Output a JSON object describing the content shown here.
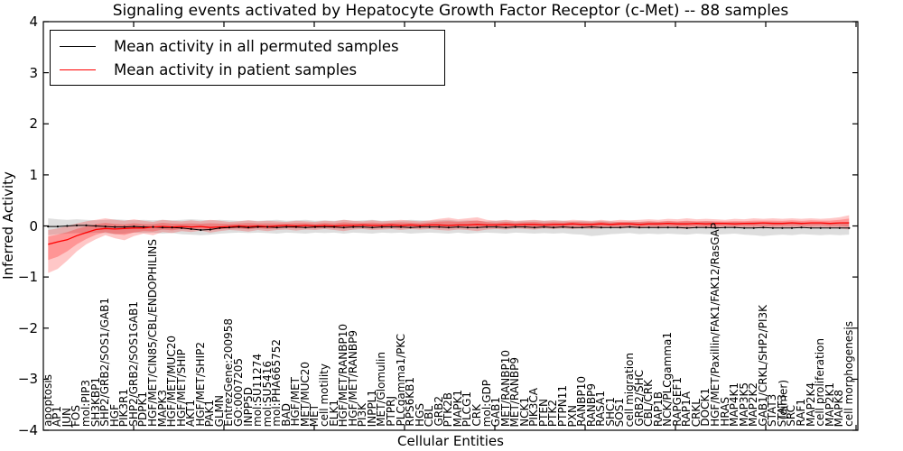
{
  "title": "Signaling events activated by Hepatocyte Growth Factor Receptor (c-Met) -- 88 samples",
  "axes": {
    "xlabel": "Cellular Entities",
    "ylabel": "Inferred Activity"
  },
  "chart_data": {
    "type": "line",
    "title": "Signaling events activated by Hepatocyte Growth Factor Receptor (c-Met) -- 88 samples",
    "xlabel": "Cellular Entities",
    "ylabel": "Inferred Activity",
    "ylim": [
      -4,
      4
    ],
    "yticks": [
      {
        "v": -4,
        "label": "−4"
      },
      {
        "v": -3,
        "label": "−3"
      },
      {
        "v": -2,
        "label": "−2"
      },
      {
        "v": -1,
        "label": "−1"
      },
      {
        "v": 0,
        "label": "0"
      },
      {
        "v": 1,
        "label": "1"
      },
      {
        "v": 2,
        "label": "2"
      },
      {
        "v": 3,
        "label": "3"
      },
      {
        "v": 4,
        "label": "4"
      }
    ],
    "grid": false,
    "legend_position": "upper left",
    "categories": [
      "apoptosis",
      "AP1",
      "JUN",
      "FOS",
      "mol:PIP3",
      "SH3KBP1",
      "SHP2/GRB2/SOS1/GAB1",
      "HGF",
      "PIK3R1",
      "SHP2/GRB2/SOS1GAB1",
      "PDPK1",
      "HGF/MET/CIN85/CBL/ENDOPHILINS",
      "MAPK3",
      "HGF/MET/MUC20",
      "HGF/MET/SHIP",
      "AKT1",
      "HGF/MET/SHIP2",
      "PAK1",
      "GLMN",
      "EntrezGene:200958",
      "GO:0007205",
      "INPP5D",
      "mol:SU11274",
      "mol:SU5416",
      "mol:PHA665752",
      "BAD",
      "HGF/MET",
      "MET/MUC20",
      "MET",
      "cell motility",
      "ELK1",
      "HGF/MET/RANBP10",
      "HGF/MET/RANBP9",
      "PI3K",
      "INPPL1",
      "MET/Glomulin",
      "PTPRJ",
      "PLCgamma1/PKC",
      "RPS6KB1",
      "HGS",
      "CBL",
      "GRB2",
      "PTK2B",
      "MAPK1",
      "PLCG1",
      "CRK",
      "mol:GDP",
      "GAB1",
      "MET/RANBP10",
      "MET/RANBP9",
      "NCK1",
      "PIK3CA",
      "PTEN",
      "PTK2",
      "PTPN11",
      "PXN",
      "RANBP10",
      "RANBP9",
      "RASA1",
      "SHC1",
      "SOS1",
      "cell migration",
      "GRB2/SHC",
      "CBL/CRK",
      "RAP1B",
      "NCK/PLCgamma1",
      "RAPGEF1",
      "RAP1A",
      "CRKL",
      "DOCK1",
      "HGF/MET/Paxillin/FAK1/FAK12/RasGAP",
      "HRAS",
      "MAP4K1",
      "MAP3K5",
      "MAP2K2",
      "GAB1/CRKL/SHP2/PI3K",
      "STAT3\n  (dimer)",
      "STAT3",
      "SRC",
      "RAF1",
      "MAP2K4",
      "cell proliferation",
      "MAP2K1",
      "MAPK8",
      "cell morphogenesis"
    ],
    "series": [
      {
        "name": "Mean activity in all permuted samples",
        "color": "#000000",
        "band_color": "rgba(0,0,0,0.13)",
        "values": [
          -0.01,
          -0.01,
          0.0,
          0.01,
          0.01,
          0.0,
          -0.01,
          -0.02,
          -0.02,
          -0.01,
          -0.02,
          -0.02,
          -0.03,
          -0.03,
          -0.04,
          -0.06,
          -0.08,
          -0.07,
          -0.04,
          -0.03,
          -0.02,
          -0.03,
          -0.02,
          -0.02,
          -0.03,
          -0.02,
          -0.02,
          -0.03,
          -0.02,
          -0.02,
          -0.02,
          -0.03,
          -0.02,
          -0.02,
          -0.03,
          -0.02,
          -0.02,
          -0.02,
          -0.03,
          -0.02,
          -0.02,
          -0.02,
          -0.03,
          -0.02,
          -0.03,
          -0.03,
          -0.02,
          -0.02,
          -0.03,
          -0.02,
          -0.02,
          -0.03,
          -0.02,
          -0.03,
          -0.02,
          -0.03,
          -0.03,
          -0.02,
          -0.03,
          -0.03,
          -0.03,
          -0.02,
          -0.03,
          -0.03,
          -0.03,
          -0.03,
          -0.03,
          -0.04,
          -0.03,
          -0.03,
          -0.04,
          -0.03,
          -0.03,
          -0.04,
          -0.04,
          -0.03,
          -0.04,
          -0.04,
          -0.04,
          -0.03,
          -0.04,
          -0.04,
          -0.04,
          -0.04,
          -0.04
        ],
        "band_lo": [
          -0.18,
          -0.16,
          -0.15,
          -0.14,
          -0.15,
          -0.13,
          -0.14,
          -0.16,
          -0.15,
          -0.13,
          -0.14,
          -0.13,
          -0.15,
          -0.14,
          -0.16,
          -0.17,
          -0.18,
          -0.17,
          -0.15,
          -0.14,
          -0.13,
          -0.14,
          -0.13,
          -0.14,
          -0.15,
          -0.13,
          -0.14,
          -0.15,
          -0.13,
          -0.14,
          -0.13,
          -0.15,
          -0.13,
          -0.14,
          -0.15,
          -0.13,
          -0.14,
          -0.13,
          -0.15,
          -0.14,
          -0.13,
          -0.14,
          -0.15,
          -0.13,
          -0.15,
          -0.14,
          -0.13,
          -0.14,
          -0.15,
          -0.13,
          -0.14,
          -0.15,
          -0.14,
          -0.15,
          -0.14,
          -0.16,
          -0.17,
          -0.2,
          -0.18,
          -0.16,
          -0.15,
          -0.14,
          -0.16,
          -0.15,
          -0.16,
          -0.15,
          -0.16,
          -0.17,
          -0.15,
          -0.16,
          -0.17,
          -0.16,
          -0.15,
          -0.17,
          -0.18,
          -0.2,
          -0.18,
          -0.17,
          -0.18,
          -0.16,
          -0.17,
          -0.18,
          -0.17,
          -0.18,
          -0.17
        ],
        "band_hi": [
          0.15,
          0.13,
          0.12,
          0.13,
          0.12,
          0.11,
          0.12,
          0.13,
          0.12,
          0.11,
          0.12,
          0.11,
          0.12,
          0.11,
          0.12,
          0.13,
          0.12,
          0.11,
          0.12,
          0.11,
          0.1,
          0.11,
          0.1,
          0.11,
          0.12,
          0.1,
          0.11,
          0.12,
          0.1,
          0.11,
          0.1,
          0.12,
          0.1,
          0.11,
          0.12,
          0.1,
          0.11,
          0.1,
          0.12,
          0.11,
          0.1,
          0.11,
          0.12,
          0.1,
          0.11,
          0.1,
          0.09,
          0.1,
          0.11,
          0.09,
          0.1,
          0.11,
          0.1,
          0.11,
          0.1,
          0.09,
          0.1,
          0.09,
          0.1,
          0.09,
          0.08,
          0.09,
          0.08,
          0.09,
          0.08,
          0.09,
          0.08,
          0.09,
          0.08,
          0.09,
          0.08,
          0.07,
          0.08,
          0.07,
          0.08,
          0.07,
          0.08,
          0.07,
          0.08,
          0.07,
          0.06,
          0.07,
          0.06,
          0.07,
          0.08
        ]
      },
      {
        "name": "Mean activity in patient samples",
        "color": "#ff0000",
        "band_color": "rgba(255,0,0,0.22)",
        "values": [
          -0.36,
          -0.31,
          -0.27,
          -0.19,
          -0.13,
          -0.07,
          -0.05,
          -0.06,
          -0.05,
          -0.04,
          -0.04,
          -0.02,
          -0.01,
          -0.02,
          -0.01,
          -0.02,
          -0.01,
          -0.03,
          -0.02,
          -0.01,
          0.0,
          -0.01,
          0.0,
          -0.01,
          0.0,
          0.01,
          0.0,
          0.01,
          0.0,
          0.01,
          0.0,
          0.01,
          0.01,
          0.02,
          0.01,
          0.01,
          0.02,
          0.01,
          0.02,
          0.01,
          0.02,
          0.02,
          0.01,
          0.02,
          0.02,
          0.03,
          0.02,
          0.02,
          0.03,
          0.02,
          0.03,
          0.03,
          0.02,
          0.03,
          0.03,
          0.04,
          0.03,
          0.03,
          0.04,
          0.03,
          0.04,
          0.04,
          0.03,
          0.04,
          0.04,
          0.05,
          0.04,
          0.04,
          0.05,
          0.04,
          0.05,
          0.05,
          0.04,
          0.05,
          0.05,
          0.06,
          0.05,
          0.05,
          0.06,
          0.05,
          0.06,
          0.06,
          0.05,
          0.06,
          0.06
        ],
        "band_lo": [
          -0.92,
          -0.84,
          -0.68,
          -0.5,
          -0.36,
          -0.26,
          -0.18,
          -0.24,
          -0.28,
          -0.2,
          -0.15,
          -0.18,
          -0.12,
          -0.14,
          -0.1,
          -0.12,
          -0.09,
          -0.13,
          -0.1,
          -0.08,
          -0.09,
          -0.11,
          -0.08,
          -0.1,
          -0.08,
          -0.07,
          -0.09,
          -0.07,
          -0.08,
          -0.06,
          -0.08,
          -0.1,
          -0.07,
          -0.06,
          -0.08,
          -0.07,
          -0.06,
          -0.08,
          -0.06,
          -0.07,
          -0.06,
          -0.08,
          -0.09,
          -0.07,
          -0.08,
          -0.1,
          -0.07,
          -0.06,
          -0.07,
          -0.05,
          -0.06,
          -0.07,
          -0.05,
          -0.06,
          -0.05,
          -0.06,
          -0.05,
          -0.06,
          -0.05,
          -0.04,
          -0.05,
          -0.04,
          -0.05,
          -0.04,
          -0.05,
          -0.04,
          -0.05,
          -0.06,
          -0.04,
          -0.05,
          -0.04,
          -0.03,
          -0.04,
          -0.03,
          -0.04,
          -0.05,
          -0.04,
          -0.03,
          -0.04,
          -0.03,
          -0.04,
          -0.03,
          -0.04,
          -0.05,
          -0.07
        ],
        "band_hi": [
          -0.08,
          -0.05,
          0.0,
          0.05,
          0.09,
          0.12,
          0.15,
          0.12,
          0.1,
          0.13,
          0.1,
          0.08,
          0.12,
          0.1,
          0.09,
          0.11,
          0.09,
          0.12,
          0.1,
          0.08,
          0.09,
          0.11,
          0.09,
          0.1,
          0.09,
          0.08,
          0.1,
          0.09,
          0.08,
          0.1,
          0.09,
          0.12,
          0.1,
          0.09,
          0.11,
          0.09,
          0.1,
          0.12,
          0.1,
          0.09,
          0.11,
          0.14,
          0.16,
          0.13,
          0.15,
          0.17,
          0.12,
          0.1,
          0.12,
          0.1,
          0.11,
          0.12,
          0.1,
          0.11,
          0.1,
          0.12,
          0.11,
          0.1,
          0.12,
          0.1,
          0.12,
          0.11,
          0.12,
          0.13,
          0.12,
          0.14,
          0.13,
          0.15,
          0.13,
          0.14,
          0.13,
          0.12,
          0.14,
          0.13,
          0.15,
          0.14,
          0.15,
          0.14,
          0.15,
          0.14,
          0.15,
          0.14,
          0.15,
          0.17,
          0.21
        ]
      }
    ]
  }
}
